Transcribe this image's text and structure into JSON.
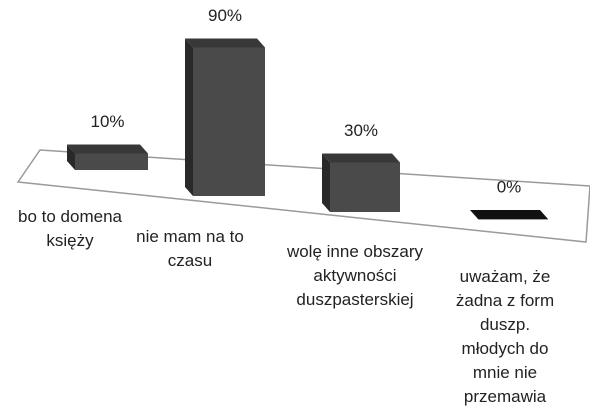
{
  "chart_data": {
    "type": "bar3d",
    "categories": [
      "bo to domena księży",
      "nie mam na to czasu",
      "wolę inne obszary aktywności duszpasterskiej",
      "uważam, że żadna z form duszp. młodych do mnie nie przemawia"
    ],
    "values": [
      10,
      90,
      30,
      0
    ],
    "value_labels": [
      "10%",
      "90%",
      "30%",
      "0%"
    ],
    "color": "#4a4a4a"
  }
}
